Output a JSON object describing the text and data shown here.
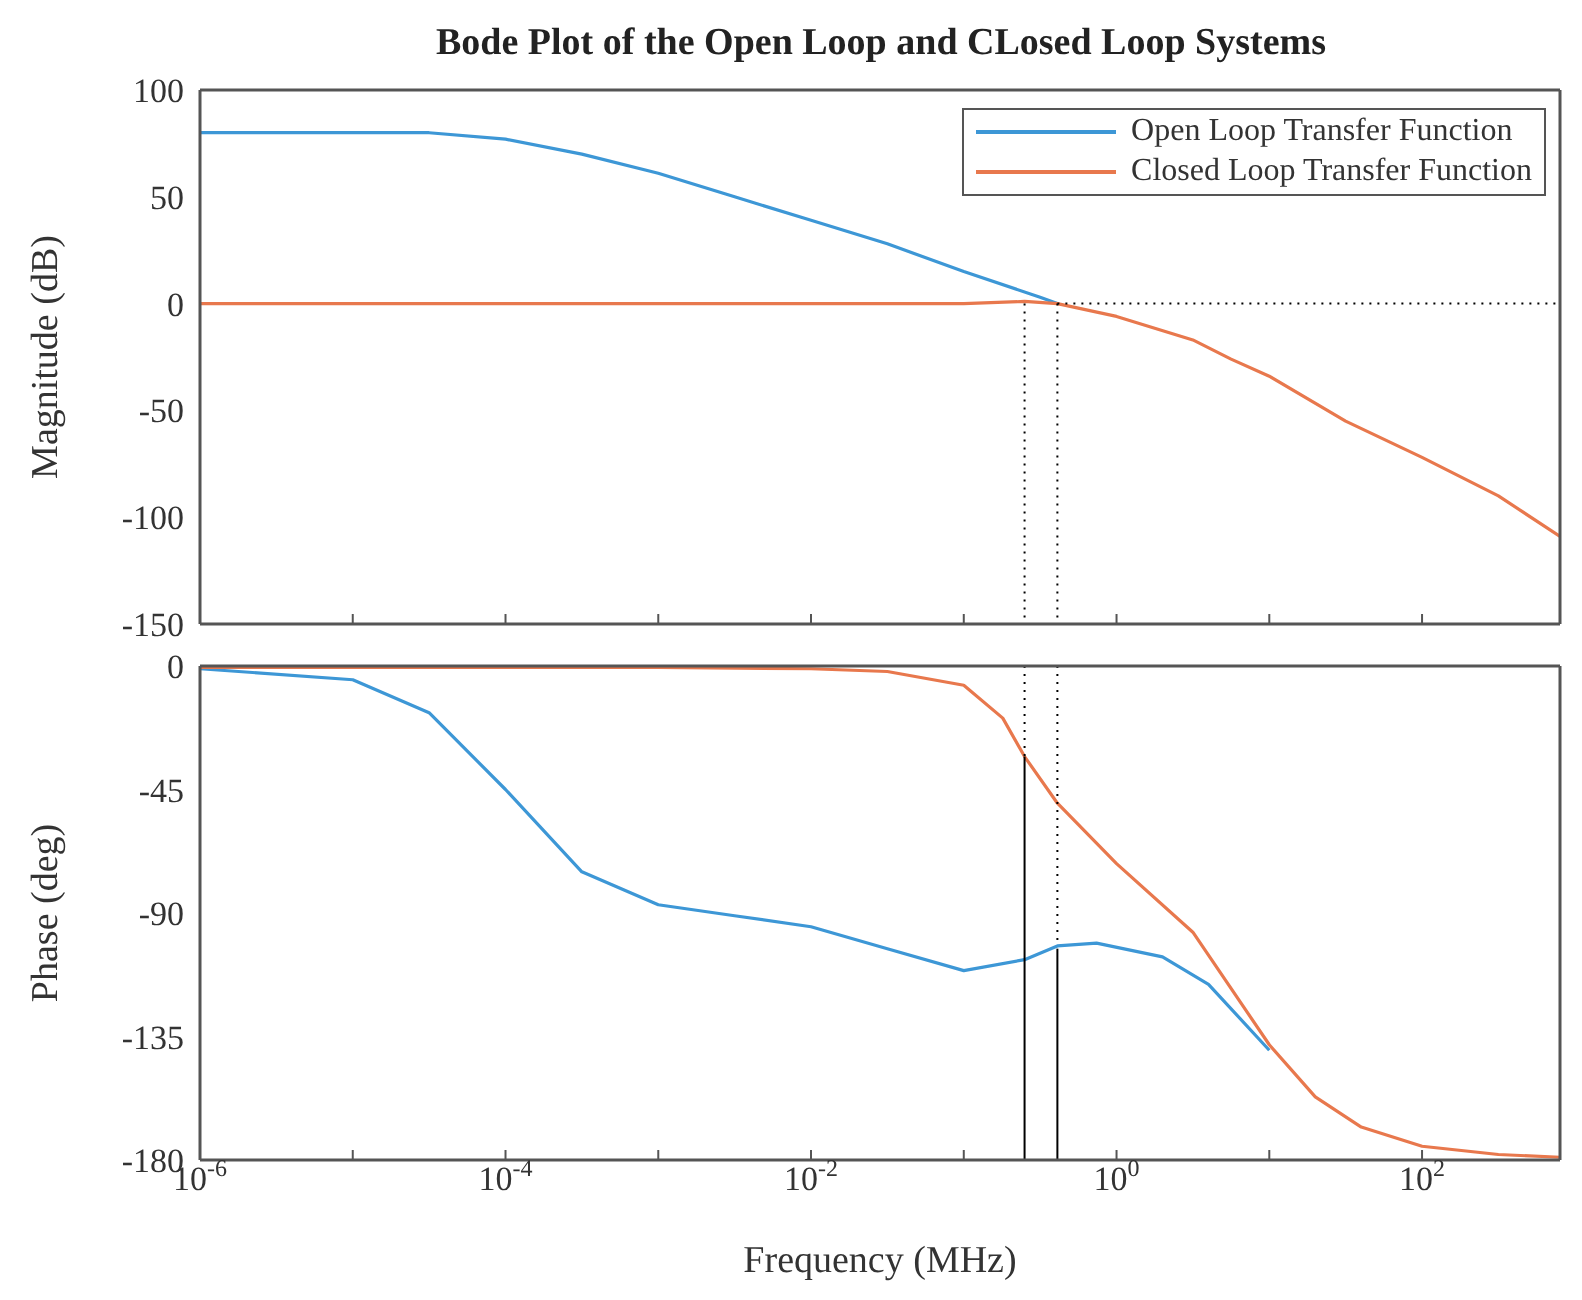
{
  "chart_data": [
    {
      "type": "line",
      "title": "Bode Plot of the Open Loop and CLosed Loop Systems",
      "ylabel": "Magnitude (dB)",
      "log": "x",
      "xlim": [
        1e-06,
        800
      ],
      "xticks": [
        {
          "value": 1e-06,
          "label": null
        },
        {
          "value": 1e-05,
          "label": null
        },
        {
          "value": 0.0001,
          "label": null
        },
        {
          "value": 0.001,
          "label": null
        },
        {
          "value": 0.01,
          "label": null
        },
        {
          "value": 0.1,
          "label": null
        },
        {
          "value": 1,
          "label": null
        },
        {
          "value": 10,
          "label": null
        },
        {
          "value": 100,
          "label": null
        }
      ],
      "ylim": [
        -150,
        100
      ],
      "yticks": [
        -150,
        -100,
        -50,
        0,
        50,
        100
      ],
      "tick_labels": "y",
      "grid": false,
      "legend": "top right",
      "marker": "none",
      "series": [
        {
          "name": "Open Loop Transfer Function",
          "color": "#3d97d6",
          "x": [
            1e-06,
            1e-05,
            3.16e-05,
            0.0001,
            0.000316,
            0.001,
            0.00316,
            0.01,
            0.0316,
            0.1,
            0.316,
            0.41
          ],
          "values": [
            80,
            80,
            80,
            77,
            70,
            61,
            50,
            39,
            28,
            15,
            3,
            0
          ]
        },
        {
          "name": "Closed Loop Transfer Function",
          "color": "#e8784d",
          "x": [
            1e-06,
            0.01,
            0.1,
            0.25,
            0.41,
            1,
            3.16,
            5.62,
            10,
            31.6,
            100,
            316,
            800
          ],
          "values": [
            0,
            0,
            0,
            1,
            0,
            -6,
            -17,
            -26,
            -34,
            -55,
            -72,
            -90,
            -109
          ]
        },
        {
          "type": "line",
          "color": "#000000",
          "line_style": "dotted",
          "x": [
            0.25,
            0.25
          ],
          "values": [
            0,
            -150
          ]
        },
        {
          "type": "line",
          "color": "#000000",
          "line_style": "dotted",
          "x": [
            0.41,
            0.41
          ],
          "values": [
            0,
            -150
          ]
        },
        {
          "type": "line",
          "color": "#000000",
          "line_style": "dotted",
          "x": [
            0.41,
            800
          ],
          "values": [
            0,
            0
          ]
        }
      ]
    },
    {
      "type": "line",
      "xlabel": "Frequency  (MHz)",
      "ylabel": "Phase (deg)",
      "log": "x",
      "xlim": [
        1e-06,
        800
      ],
      "xticks": [
        {
          "value": 1e-06,
          "label": "10$^{-6}$"
        },
        {
          "value": 1e-05,
          "label": null
        },
        {
          "value": 0.0001,
          "label": "10$^{-4}$"
        },
        {
          "value": 0.001,
          "label": null
        },
        {
          "value": 0.01,
          "label": "10$^{-2}$"
        },
        {
          "value": 0.1,
          "label": null
        },
        {
          "value": 1,
          "label": "10$^{0}$"
        },
        {
          "value": 10,
          "label": null
        },
        {
          "value": 100,
          "label": "10$^{2}$"
        }
      ],
      "ylim": [
        -180,
        0
      ],
      "yticks": [
        -180,
        -135,
        -90,
        -45,
        0
      ],
      "grid": false,
      "marker": "none",
      "series": [
        {
          "color": "#3d97d6",
          "x": [
            1e-06,
            1e-05,
            3.16e-05,
            0.0001,
            0.000316,
            0.001,
            0.00316,
            0.01,
            0.0316,
            0.1,
            0.25,
            0.41,
            0.74,
            2,
            4,
            10
          ],
          "values": [
            -1,
            -5,
            -17,
            -45,
            -75,
            -87,
            -91,
            -95,
            -103,
            -111,
            -107,
            -102,
            -101,
            -106,
            -116,
            -140
          ]
        },
        {
          "color": "#e8784d",
          "x": [
            1e-06,
            0.001,
            0.01,
            0.0316,
            0.1,
            0.18,
            0.25,
            0.41,
            1,
            3.16,
            10,
            20,
            40,
            100,
            316,
            800
          ],
          "values": [
            -0.5,
            -0.5,
            -1,
            -2,
            -7,
            -19,
            -33,
            -50,
            -72,
            -97,
            -138,
            -157,
            -168,
            -175,
            -178,
            -179
          ]
        },
        {
          "type": "line",
          "color": "#000000",
          "line_style": "dotted",
          "x": [
            0.25,
            0.25
          ],
          "values": [
            0,
            -33
          ]
        },
        {
          "type": "line",
          "color": "#000000",
          "line_style": "dotted",
          "x": [
            0.41,
            0.41
          ],
          "values": [
            0,
            -102
          ]
        },
        {
          "type": "line",
          "color": "#000000",
          "line_style": "solid",
          "x": [
            0.25,
            0.25
          ],
          "values": [
            -180,
            -33
          ]
        },
        {
          "type": "line",
          "color": "#000000",
          "line_style": "solid",
          "x": [
            0.41,
            0.41
          ],
          "values": [
            -180,
            -103
          ]
        }
      ]
    }
  ]
}
